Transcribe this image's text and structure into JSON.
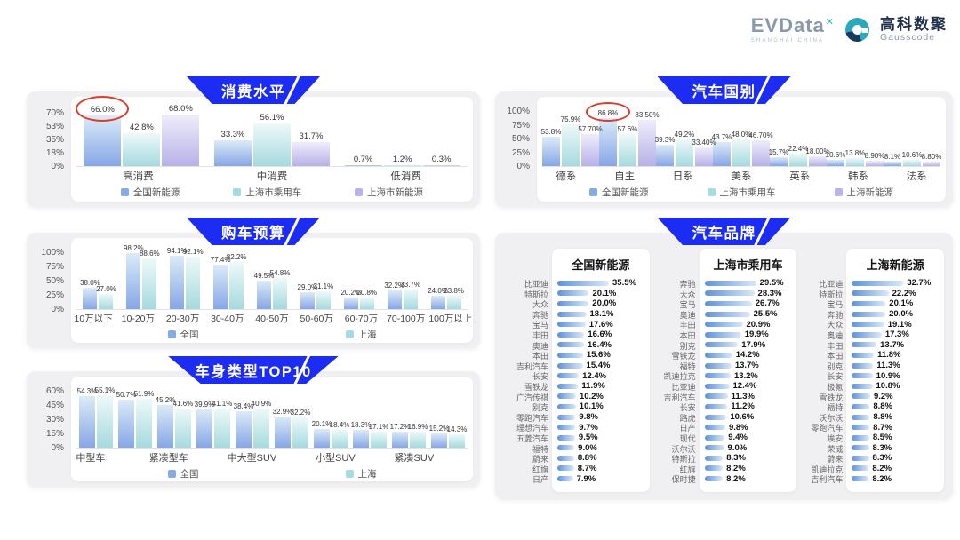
{
  "logo": {
    "evdata": "EVData",
    "evdata_sup": "✕",
    "evdata_sub": "SHANGHAI CHINA",
    "gausscode_cn": "高科数聚",
    "gausscode_en": "Gausscode"
  },
  "colors": {
    "badge_blue": "#1c2cf2",
    "series_blue": "#87a9e6",
    "series_teal": "#a8dbdf",
    "series_purple": "#b9b3e9",
    "annotation_red": "#dd3b2b"
  },
  "chart_data": [
    {
      "id": "consumption",
      "type": "bar",
      "title": "消费水平",
      "categories": [
        "高消费",
        "中消费",
        "低消费"
      ],
      "yticks": [
        "70%",
        "53%",
        "35%",
        "18%",
        "0%"
      ],
      "ymax": 70,
      "series": [
        {
          "name": "全国新能源",
          "color_key": "blue",
          "labels": [
            "66.0%",
            "33.3%",
            "0.7%"
          ]
        },
        {
          "name": "上海市乘用车",
          "color_key": "teal",
          "labels": [
            "42.8%",
            "56.1%",
            "1.2%"
          ]
        },
        {
          "name": "上海市新能源",
          "color_key": "purple",
          "labels": [
            "68.0%",
            "31.7%",
            "0.3%"
          ]
        }
      ],
      "annotation": {
        "type": "red-ellipse",
        "group": 0,
        "series": 0
      }
    },
    {
      "id": "budget",
      "type": "bar",
      "title": "购车预算",
      "categories": [
        "10万以下",
        "10-20万",
        "20-30万",
        "30-40万",
        "40-50万",
        "50-60万",
        "60-70万",
        "70-100万",
        "100万以上"
      ],
      "yticks": [
        "100%",
        "75%",
        "50%",
        "25%",
        "0%"
      ],
      "ymax": 100,
      "series": [
        {
          "name": "全国",
          "color_key": "blue",
          "labels": [
            "38.0%",
            "98.2%",
            "94.1%",
            "77.4%",
            "49.5%",
            "29.0%",
            "20.2%",
            "32.2%",
            "24.0%"
          ]
        },
        {
          "name": "上海",
          "color_key": "teal",
          "labels": [
            "27.0%",
            "88.6%",
            "92.1%",
            "82.2%",
            "54.8%",
            "31.1%",
            "20.8%",
            "33.7%",
            "23.8%"
          ]
        }
      ]
    },
    {
      "id": "body",
      "type": "bar",
      "title": "车身类型TOP10",
      "categories": [
        "中型车",
        "",
        "紧凑型车",
        "",
        "中大型SUV",
        "",
        "小型SUV",
        "",
        "紧凑SUV",
        ""
      ],
      "yticks": [
        "60%",
        "45%",
        "30%",
        "15%",
        "0%"
      ],
      "ymax": 60,
      "series": [
        {
          "name": "全国",
          "color_key": "blue",
          "labels": [
            "54.3%",
            "50.7%",
            "45.2%",
            "39.9%",
            "38.4%",
            "32.9%",
            "20.1%",
            "18.3%",
            "17.2%",
            "15.2%"
          ]
        },
        {
          "name": "上海",
          "color_key": "teal",
          "labels": [
            "55.1%",
            "51.9%",
            "41.6%",
            "41.1%",
            "40.9%",
            "32.2%",
            "18.4%",
            "17.1%",
            "16.9%",
            "14.3%"
          ]
        }
      ]
    },
    {
      "id": "country",
      "type": "bar",
      "title": "汽车国别",
      "categories": [
        "德系",
        "自主",
        "日系",
        "美系",
        "英系",
        "韩系",
        "法系"
      ],
      "yticks": [
        "100%",
        "75%",
        "50%",
        "25%",
        "0%"
      ],
      "ymax": 100,
      "series": [
        {
          "name": "全国新能源",
          "color_key": "blue",
          "labels": [
            "53.8%",
            "86.8%",
            "39.3%",
            "43.7%",
            "15.7%",
            "10.6%",
            "8.1%"
          ]
        },
        {
          "name": "上海市乘用车",
          "color_key": "teal",
          "labels": [
            "75.9%",
            "57.6%",
            "49.2%",
            "48.0%",
            "22.4%",
            "13.8%",
            "10.6%"
          ]
        },
        {
          "name": "上海新能源",
          "color_key": "purple",
          "labels": [
            "57.70%",
            "83.50%",
            "33.40%",
            "46.70%",
            "18.00%",
            "8.90%",
            "8.80%"
          ]
        }
      ],
      "annotation": {
        "type": "red-ellipse",
        "group": 1,
        "series": 0
      }
    },
    {
      "id": "brands",
      "type": "table",
      "title": "汽车品牌",
      "lists": [
        {
          "title": "全国新能源",
          "items": [
            {
              "name": "比亚迪",
              "value": "35.5%"
            },
            {
              "name": "特斯拉",
              "value": "20.1%"
            },
            {
              "name": "大众",
              "value": "20.0%"
            },
            {
              "name": "奔驰",
              "value": "18.1%"
            },
            {
              "name": "宝马",
              "value": "17.6%"
            },
            {
              "name": "丰田",
              "value": "16.6%"
            },
            {
              "name": "奥迪",
              "value": "16.4%"
            },
            {
              "name": "本田",
              "value": "15.6%"
            },
            {
              "name": "吉利汽车",
              "value": "15.4%"
            },
            {
              "name": "长安",
              "value": "12.4%"
            },
            {
              "name": "雪铁龙",
              "value": "11.9%"
            },
            {
              "name": "广汽传祺",
              "value": "10.2%"
            },
            {
              "name": "别克",
              "value": "10.1%"
            },
            {
              "name": "零跑汽车",
              "value": "9.8%"
            },
            {
              "name": "理想汽车",
              "value": "9.7%"
            },
            {
              "name": "五菱汽车",
              "value": "9.5%"
            },
            {
              "name": "福特",
              "value": "9.0%"
            },
            {
              "name": "蔚来",
              "value": "8.8%"
            },
            {
              "name": "红旗",
              "value": "8.7%"
            },
            {
              "name": "日产",
              "value": "7.9%"
            }
          ]
        },
        {
          "title": "上海市乘用车",
          "items": [
            {
              "name": "奔驰",
              "value": "29.5%"
            },
            {
              "name": "大众",
              "value": "28.3%"
            },
            {
              "name": "宝马",
              "value": "26.7%"
            },
            {
              "name": "奥迪",
              "value": "25.5%"
            },
            {
              "name": "丰田",
              "value": "20.9%"
            },
            {
              "name": "本田",
              "value": "19.9%"
            },
            {
              "name": "别克",
              "value": "17.9%"
            },
            {
              "name": "雪铁龙",
              "value": "14.2%"
            },
            {
              "name": "福特",
              "value": "13.7%"
            },
            {
              "name": "凯迪拉克",
              "value": "13.2%"
            },
            {
              "name": "比亚迪",
              "value": "12.4%"
            },
            {
              "name": "吉利汽车",
              "value": "11.3%"
            },
            {
              "name": "长安",
              "value": "11.2%"
            },
            {
              "name": "路虎",
              "value": "10.6%"
            },
            {
              "name": "日产",
              "value": "9.8%"
            },
            {
              "name": "现代",
              "value": "9.4%"
            },
            {
              "name": "沃尔沃",
              "value": "9.0%"
            },
            {
              "name": "特斯拉",
              "value": "8.3%"
            },
            {
              "name": "红旗",
              "value": "8.2%"
            },
            {
              "name": "保时捷",
              "value": "8.2%"
            }
          ]
        },
        {
          "title": "上海新能源",
          "items": [
            {
              "name": "比亚迪",
              "value": "32.7%"
            },
            {
              "name": "特斯拉",
              "value": "22.2%"
            },
            {
              "name": "宝马",
              "value": "20.1%"
            },
            {
              "name": "奔驰",
              "value": "20.0%"
            },
            {
              "name": "大众",
              "value": "19.1%"
            },
            {
              "name": "奥迪",
              "value": "17.3%"
            },
            {
              "name": "丰田",
              "value": "13.7%"
            },
            {
              "name": "本田",
              "value": "11.8%"
            },
            {
              "name": "别克",
              "value": "11.3%"
            },
            {
              "name": "长安",
              "value": "10.9%"
            },
            {
              "name": "极氪",
              "value": "10.8%"
            },
            {
              "name": "雪铁龙",
              "value": "9.2%"
            },
            {
              "name": "福特",
              "value": "8.8%"
            },
            {
              "name": "沃尔沃",
              "value": "8.8%"
            },
            {
              "name": "零跑汽车",
              "value": "8.7%"
            },
            {
              "name": "埃安",
              "value": "8.5%"
            },
            {
              "name": "荣威",
              "value": "8.3%"
            },
            {
              "name": "蔚来",
              "value": "8.3%"
            },
            {
              "name": "凯迪拉克",
              "value": "8.2%"
            },
            {
              "name": "吉利汽车",
              "value": "8.2%"
            }
          ]
        }
      ]
    }
  ]
}
